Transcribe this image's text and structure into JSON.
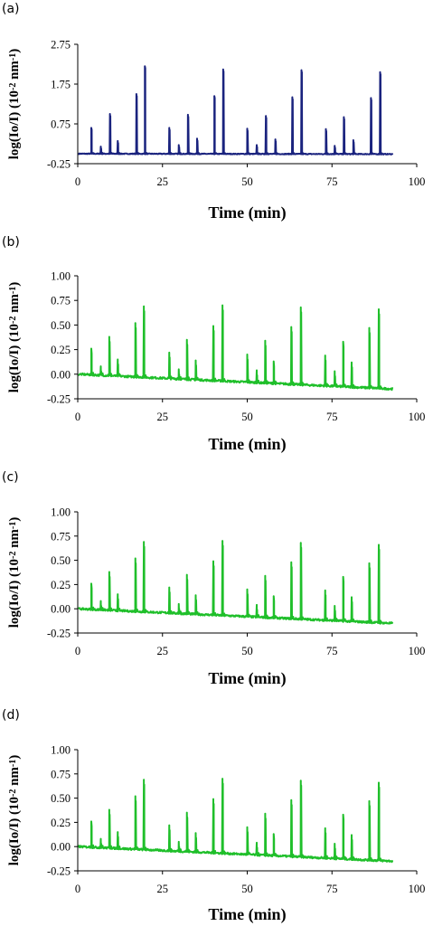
{
  "chart_data": [
    {
      "panel_label": "(a)",
      "type": "line",
      "xlabel": "Time (min)",
      "ylabel_main": "log(Io/I) (10",
      "ylabel_exp1": "-2",
      "ylabel_mid": " nm",
      "ylabel_exp2": "-1",
      "ylabel_end": ")",
      "xlim": [
        0,
        100
      ],
      "ylim": [
        -0.25,
        2.75
      ],
      "xticks": [
        0,
        25,
        50,
        75,
        100
      ],
      "yticks": [
        -0.25,
        0.75,
        1.75,
        2.75
      ],
      "xtick_labels": [
        "0",
        "25",
        "50",
        "75",
        "100"
      ],
      "ytick_labels": [
        "-0.25",
        "0.75",
        "1.75",
        "2.75"
      ],
      "series": [
        {
          "color": "#1a237e",
          "x_range": [
            0.3,
            92.8
          ],
          "baseline": [
            0.0,
            -0.01
          ],
          "peaks": [
            [
              4.0,
              0.65
            ],
            [
              6.8,
              0.18
            ],
            [
              9.5,
              1.0
            ],
            [
              11.8,
              0.32
            ],
            [
              17.3,
              1.5
            ],
            [
              19.8,
              2.2
            ],
            [
              27.0,
              0.65
            ],
            [
              29.8,
              0.22
            ],
            [
              32.5,
              0.98
            ],
            [
              35.2,
              0.38
            ],
            [
              40.3,
              1.45
            ],
            [
              42.9,
              2.12
            ],
            [
              50.0,
              0.63
            ],
            [
              52.8,
              0.22
            ],
            [
              55.5,
              0.95
            ],
            [
              58.3,
              0.36
            ],
            [
              63.3,
              1.42
            ],
            [
              66.0,
              2.1
            ],
            [
              73.2,
              0.62
            ],
            [
              75.8,
              0.2
            ],
            [
              78.5,
              0.92
            ],
            [
              81.3,
              0.34
            ],
            [
              86.5,
              1.4
            ],
            [
              89.2,
              2.05
            ]
          ]
        }
      ]
    },
    {
      "panel_label": "(b)",
      "type": "line",
      "xlabel": "Time (min)",
      "ylabel_main": "log(Io/I) (10",
      "ylabel_exp1": "-2",
      "ylabel_mid": " nm",
      "ylabel_exp2": "-1",
      "ylabel_end": ")",
      "xlim": [
        0,
        100
      ],
      "ylim": [
        -0.25,
        1.0
      ],
      "xticks": [
        0,
        25,
        50,
        75,
        100
      ],
      "yticks": [
        -0.25,
        0.0,
        0.25,
        0.5,
        0.75,
        1.0
      ],
      "xtick_labels": [
        "0",
        "25",
        "50",
        "75",
        "100"
      ],
      "ytick_labels": [
        "-0.25",
        "0.00",
        "0.25",
        "0.50",
        "0.75",
        "1.00"
      ],
      "series": [
        {
          "color": "#1fbf2a",
          "x_range": [
            0.3,
            92.8
          ],
          "baseline": [
            0.0,
            -0.15
          ],
          "peaks": [
            [
              4.0,
              0.26
            ],
            [
              6.8,
              0.08
            ],
            [
              9.3,
              0.38
            ],
            [
              11.8,
              0.15
            ],
            [
              17.0,
              0.52
            ],
            [
              19.5,
              0.69
            ],
            [
              27.0,
              0.22
            ],
            [
              29.8,
              0.05
            ],
            [
              32.2,
              0.35
            ],
            [
              34.8,
              0.14
            ],
            [
              40.0,
              0.49
            ],
            [
              42.7,
              0.7
            ],
            [
              50.0,
              0.2
            ],
            [
              52.8,
              0.04
            ],
            [
              55.3,
              0.34
            ],
            [
              57.8,
              0.13
            ],
            [
              63.0,
              0.48
            ],
            [
              65.8,
              0.68
            ],
            [
              73.0,
              0.19
            ],
            [
              75.8,
              0.03
            ],
            [
              78.3,
              0.33
            ],
            [
              80.8,
              0.12
            ],
            [
              86.0,
              0.47
            ],
            [
              88.8,
              0.66
            ]
          ]
        }
      ]
    },
    {
      "panel_label": "(c)",
      "type": "line",
      "xlabel": "Time (min)",
      "ylabel_main": "log(Io/I) (10",
      "ylabel_exp1": "-2",
      "ylabel_mid": " nm",
      "ylabel_exp2": "-1",
      "ylabel_end": ")",
      "xlim": [
        0,
        100
      ],
      "ylim": [
        -0.25,
        1.0
      ],
      "xticks": [
        0,
        25,
        50,
        75,
        100
      ],
      "yticks": [
        -0.25,
        0.0,
        0.25,
        0.5,
        0.75,
        1.0
      ],
      "xtick_labels": [
        "0",
        "25",
        "50",
        "75",
        "100"
      ],
      "ytick_labels": [
        "-0.25",
        "0.00",
        "0.25",
        "0.50",
        "0.75",
        "1.00"
      ],
      "series": [
        {
          "color": "#1fbf2a",
          "x_range": [
            0.3,
            92.8
          ],
          "baseline": [
            0.0,
            -0.15
          ],
          "peaks": [
            [
              4.0,
              0.26
            ],
            [
              6.8,
              0.08
            ],
            [
              9.3,
              0.38
            ],
            [
              11.8,
              0.15
            ],
            [
              17.0,
              0.52
            ],
            [
              19.5,
              0.69
            ],
            [
              27.0,
              0.22
            ],
            [
              29.8,
              0.05
            ],
            [
              32.2,
              0.35
            ],
            [
              34.8,
              0.14
            ],
            [
              40.0,
              0.49
            ],
            [
              42.7,
              0.7
            ],
            [
              50.0,
              0.2
            ],
            [
              52.8,
              0.04
            ],
            [
              55.3,
              0.34
            ],
            [
              57.8,
              0.13
            ],
            [
              63.0,
              0.48
            ],
            [
              65.8,
              0.68
            ],
            [
              73.0,
              0.19
            ],
            [
              75.8,
              0.03
            ],
            [
              78.3,
              0.33
            ],
            [
              80.8,
              0.12
            ],
            [
              86.0,
              0.47
            ],
            [
              88.8,
              0.66
            ]
          ]
        }
      ]
    },
    {
      "panel_label": "(d)",
      "type": "line",
      "xlabel": "Time (min)",
      "ylabel_main": "log(Io/I) (10",
      "ylabel_exp1": "-2",
      "ylabel_mid": " nm",
      "ylabel_exp2": "-1",
      "ylabel_end": ")",
      "xlim": [
        0,
        100
      ],
      "ylim": [
        -0.25,
        1.0
      ],
      "xticks": [
        0,
        25,
        50,
        75,
        100
      ],
      "yticks": [
        -0.25,
        0.0,
        0.25,
        0.5,
        0.75,
        1.0
      ],
      "xtick_labels": [
        "0",
        "25",
        "50",
        "75",
        "100"
      ],
      "ytick_labels": [
        "-0.25",
        "0.00",
        "0.25",
        "0.50",
        "0.75",
        "1.00"
      ],
      "series": [
        {
          "color": "#1fbf2a",
          "x_range": [
            0.3,
            92.8
          ],
          "baseline": [
            0.0,
            -0.15
          ],
          "peaks": [
            [
              4.0,
              0.26
            ],
            [
              6.8,
              0.08
            ],
            [
              9.3,
              0.38
            ],
            [
              11.8,
              0.15
            ],
            [
              17.0,
              0.52
            ],
            [
              19.5,
              0.69
            ],
            [
              27.0,
              0.22
            ],
            [
              29.8,
              0.05
            ],
            [
              32.2,
              0.35
            ],
            [
              34.8,
              0.14
            ],
            [
              40.0,
              0.49
            ],
            [
              42.7,
              0.7
            ],
            [
              50.0,
              0.2
            ],
            [
              52.8,
              0.04
            ],
            [
              55.3,
              0.34
            ],
            [
              57.8,
              0.13
            ],
            [
              63.0,
              0.48
            ],
            [
              65.8,
              0.68
            ],
            [
              73.0,
              0.19
            ],
            [
              75.8,
              0.03
            ],
            [
              78.3,
              0.33
            ],
            [
              80.8,
              0.12
            ],
            [
              86.0,
              0.47
            ],
            [
              88.8,
              0.66
            ]
          ]
        }
      ]
    }
  ]
}
